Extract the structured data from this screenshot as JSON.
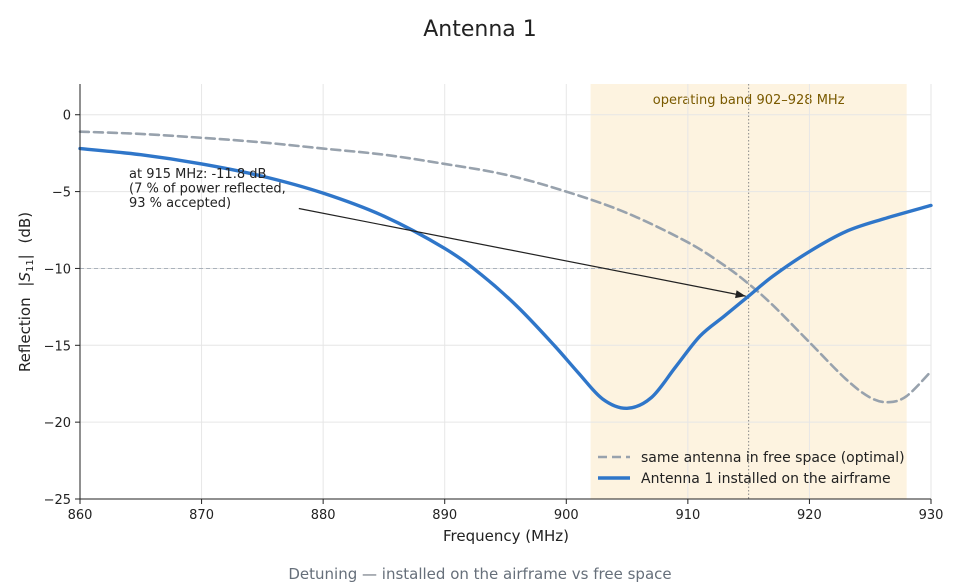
{
  "chart_data": {
    "type": "line",
    "title": "Antenna 1",
    "subtitle": "Detuning — installed on the airframe vs free space",
    "xlabel": "Frequency (MHz)",
    "ylabel_prefix": "Reflection",
    "ylabel_symbol": "S",
    "ylabel_subscript": "11",
    "ylabel_unit": "(dB)",
    "xlim": [
      860,
      930
    ],
    "ylim": [
      -25,
      2
    ],
    "xticks": [
      860,
      870,
      880,
      890,
      900,
      910,
      920,
      930
    ],
    "yticks": [
      0,
      -5,
      -10,
      -15,
      -20,
      -25
    ],
    "ytick_labels": [
      "0",
      "−5",
      "−10",
      "−15",
      "−20",
      "−25"
    ],
    "grid": true,
    "legend_position": "bottom-right",
    "band": {
      "from": 902,
      "to": 928,
      "label": "operating band 902–928 MHz",
      "color": "#fdf3e0"
    },
    "reference_line": {
      "y": -10,
      "color": "#aab2bb"
    },
    "marker_line": {
      "x": 915
    },
    "annotation": {
      "lines": [
        "at 915 MHz: -11.8 dB",
        "(7 % of power reflected,",
        "93 % accepted)"
      ],
      "point": [
        915,
        -11.8
      ],
      "text_anchor": [
        878,
        -6.1
      ]
    },
    "series": [
      {
        "name": "same antenna in free space (optimal)",
        "style": "dashed",
        "color": "#98a2ad",
        "x": [
          860,
          865,
          870,
          875,
          880,
          885,
          890,
          895,
          900,
          905,
          910,
          913,
          915,
          917,
          920,
          923,
          925,
          926.5,
          928,
          930
        ],
        "y": [
          -1.1,
          -1.25,
          -1.5,
          -1.8,
          -2.2,
          -2.6,
          -3.2,
          -3.9,
          -5.0,
          -6.4,
          -8.3,
          -9.8,
          -11.0,
          -12.4,
          -14.8,
          -17.2,
          -18.4,
          -18.7,
          -18.3,
          -16.7
        ]
      },
      {
        "name": "Antenna 1 installed on the airframe",
        "style": "solid",
        "color": "#2f76c9",
        "x": [
          860,
          865,
          870,
          875,
          880,
          885,
          890,
          893,
          896,
          899,
          901,
          903,
          905,
          907,
          909,
          911,
          913,
          915,
          917,
          920,
          923,
          926,
          930
        ],
        "y": [
          -2.2,
          -2.6,
          -3.2,
          -4.0,
          -5.1,
          -6.6,
          -8.7,
          -10.4,
          -12.5,
          -15.0,
          -16.8,
          -18.5,
          -19.1,
          -18.4,
          -16.4,
          -14.4,
          -13.1,
          -11.8,
          -10.5,
          -8.9,
          -7.6,
          -6.8,
          -5.9
        ]
      }
    ]
  }
}
